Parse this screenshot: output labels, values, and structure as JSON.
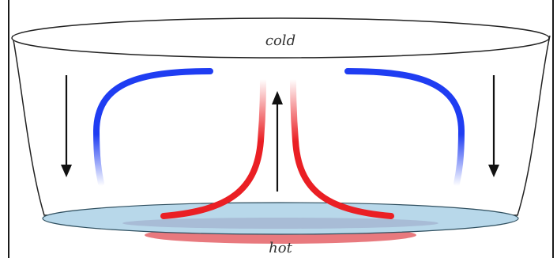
{
  "labels": {
    "top": "cold",
    "bottom": "hot"
  },
  "colors": {
    "cold_stream": "#1f3df2",
    "hot_stream": "#ea1f24",
    "water_surface": "#b8d8ea",
    "hot_plate": "#e56a70",
    "arrow": "#111111",
    "bowl_outline": "#222222"
  }
}
